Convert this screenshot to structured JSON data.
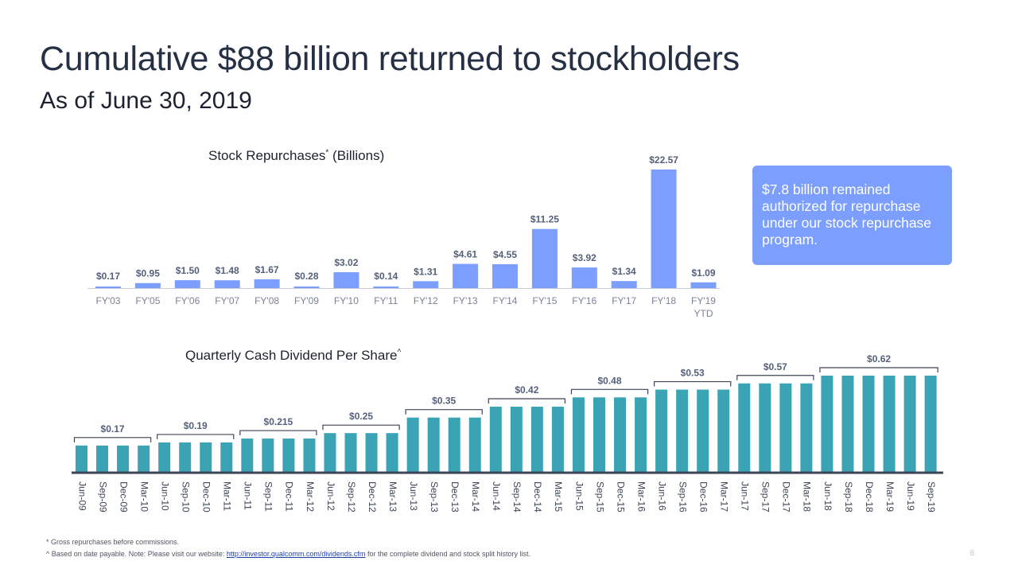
{
  "title": "Cumulative $88 billion returned to stockholders",
  "subtitle": "As of June 30, 2019",
  "callout": "$7.8 billion remained authorized for repurchase under our stock repurchase program.",
  "footnotes": {
    "line1": "* Gross repurchases before commissions.",
    "line2_prefix": "^ Based on date payable. Note: Please visit our website: ",
    "link_text": "http://investor.qualcomm.com/dividends.cfm",
    "line2_suffix": " for the complete dividend and stock split history list."
  },
  "page_number": "8",
  "chart_data": [
    {
      "type": "bar",
      "title": "Stock Repurchases",
      "title_mark": "*",
      "title_suffix": "(Billions)",
      "colors": {
        "bar": "#7b9eff",
        "label": "#55607a",
        "axis": "#7a8296"
      },
      "categories": [
        "FY'03",
        "FY'05",
        "FY'06",
        "FY'07",
        "FY'08",
        "FY'09",
        "FY'10",
        "FY'11",
        "FY'12",
        "FY'13",
        "FY'14",
        "FY'15",
        "FY'16",
        "FY'17",
        "FY'18",
        "FY'19"
      ],
      "category_sublabels": [
        "",
        "",
        "",
        "",
        "",
        "",
        "",
        "",
        "",
        "",
        "",
        "",
        "",
        "",
        "",
        "YTD"
      ],
      "values": [
        0.17,
        0.95,
        1.5,
        1.48,
        1.67,
        0.28,
        3.02,
        0.14,
        1.31,
        4.61,
        4.55,
        11.25,
        3.92,
        1.34,
        22.57,
        1.09
      ],
      "data_labels": [
        "$0.17",
        "$0.95",
        "$1.50",
        "$1.48",
        "$1.67",
        "$0.28",
        "$3.02",
        "$0.14",
        "$1.31",
        "$4.61",
        "$4.55",
        "$11.25",
        "$3.92",
        "$1.34",
        "$22.57",
        "$1.09"
      ],
      "ylim": [
        0,
        22.57
      ],
      "grid": false
    },
    {
      "type": "bar",
      "title": "Quarterly Cash Dividend Per Share",
      "title_mark": "^",
      "colors": {
        "bar": "#3aa3b4",
        "label": "#55607a",
        "axis": "#3d4457",
        "bracket": "#3d4457"
      },
      "categories": [
        "Jun-09",
        "Sep-09",
        "Dec-09",
        "Mar-10",
        "Jun-10",
        "Sep-10",
        "Dec-10",
        "Mar-11",
        "Jun-11",
        "Sep-11",
        "Dec-11",
        "Mar-12",
        "Jun-12",
        "Sep-12",
        "Dec-12",
        "Mar-13",
        "Jun-13",
        "Sep-13",
        "Dec-13",
        "Mar-14",
        "Jun-14",
        "Sep-14",
        "Dec-14",
        "Mar-15",
        "Jun-15",
        "Sep-15",
        "Dec-15",
        "Mar-16",
        "Jun-16",
        "Sep-16",
        "Dec-16",
        "Mar-17",
        "Jun-17",
        "Sep-17",
        "Dec-17",
        "Mar-18",
        "Jun-18",
        "Sep-18",
        "Dec-18",
        "Mar-19",
        "Jun-19",
        "Sep-19"
      ],
      "values": [
        0.17,
        0.17,
        0.17,
        0.17,
        0.19,
        0.19,
        0.19,
        0.19,
        0.215,
        0.215,
        0.215,
        0.215,
        0.25,
        0.25,
        0.25,
        0.25,
        0.35,
        0.35,
        0.35,
        0.35,
        0.42,
        0.42,
        0.42,
        0.42,
        0.48,
        0.48,
        0.48,
        0.48,
        0.53,
        0.53,
        0.53,
        0.53,
        0.57,
        0.57,
        0.57,
        0.57,
        0.62,
        0.62,
        0.62,
        0.62,
        0.62,
        0.62
      ],
      "groups": [
        {
          "label": "$0.17",
          "start": 0,
          "end": 3
        },
        {
          "label": "$0.19",
          "start": 4,
          "end": 7
        },
        {
          "label": "$0.215",
          "start": 8,
          "end": 11
        },
        {
          "label": "$0.25",
          "start": 12,
          "end": 15
        },
        {
          "label": "$0.35",
          "start": 16,
          "end": 19
        },
        {
          "label": "$0.42",
          "start": 20,
          "end": 23
        },
        {
          "label": "$0.48",
          "start": 24,
          "end": 27
        },
        {
          "label": "$0.53",
          "start": 28,
          "end": 31
        },
        {
          "label": "$0.57",
          "start": 32,
          "end": 35
        },
        {
          "label": "$0.62",
          "start": 36,
          "end": 41
        }
      ],
      "ylim": [
        0,
        0.62
      ],
      "grid": false
    }
  ]
}
